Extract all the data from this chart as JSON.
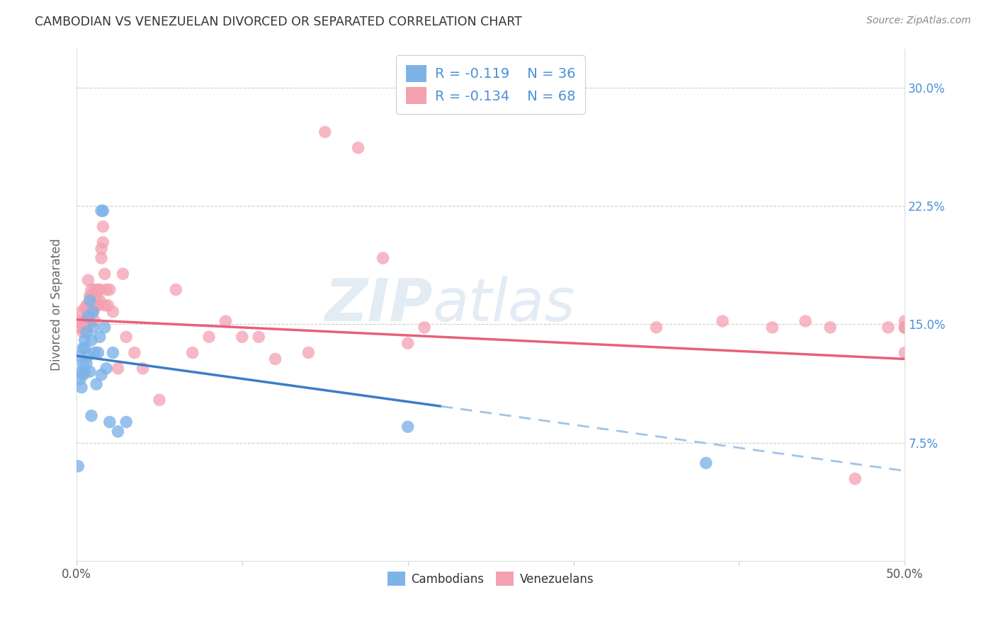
{
  "title": "CAMBODIAN VS VENEZUELAN DIVORCED OR SEPARATED CORRELATION CHART",
  "source": "Source: ZipAtlas.com",
  "ylabel": "Divorced or Separated",
  "xlabel": "",
  "xlim": [
    0.0,
    0.5
  ],
  "ylim": [
    0.0,
    0.325
  ],
  "xticks": [
    0.0,
    0.1,
    0.2,
    0.3,
    0.4,
    0.5
  ],
  "xticklabels": [
    "0.0%",
    "",
    "",
    "",
    "",
    "50.0%"
  ],
  "yticks_right": [
    0.075,
    0.15,
    0.225,
    0.3
  ],
  "yticklabels_right": [
    "7.5%",
    "15.0%",
    "22.5%",
    "30.0%"
  ],
  "cambodian_color": "#7EB3E8",
  "venezuelan_color": "#F4A0B0",
  "cambodian_line_color": "#3A7DC9",
  "venezuelan_line_color": "#E8607A",
  "dashed_line_color": "#A0C4E8",
  "legend_R_cambodian": "R = -0.119",
  "legend_N_cambodian": "N = 36",
  "legend_R_venezuelan": "R = -0.134",
  "legend_N_venezuelan": "N = 68",
  "watermark_zip": "ZIP",
  "watermark_atlas": "atlas",
  "cam_line_start_x": 0.0,
  "cam_line_start_y": 0.13,
  "cam_line_end_solid_x": 0.22,
  "cam_line_end_solid_y": 0.098,
  "cam_line_end_dash_x": 0.5,
  "cam_line_end_dash_y": 0.057,
  "ven_line_start_x": 0.0,
  "ven_line_start_y": 0.153,
  "ven_line_end_x": 0.5,
  "ven_line_end_y": 0.128,
  "cambodian_x": [
    0.001,
    0.002,
    0.002,
    0.003,
    0.003,
    0.004,
    0.004,
    0.004,
    0.005,
    0.005,
    0.005,
    0.006,
    0.006,
    0.007,
    0.007,
    0.008,
    0.008,
    0.009,
    0.009,
    0.01,
    0.01,
    0.011,
    0.012,
    0.013,
    0.014,
    0.015,
    0.015,
    0.016,
    0.017,
    0.018,
    0.02,
    0.022,
    0.025,
    0.03,
    0.2,
    0.38
  ],
  "cambodian_y": [
    0.06,
    0.13,
    0.115,
    0.12,
    0.11,
    0.135,
    0.125,
    0.118,
    0.14,
    0.135,
    0.12,
    0.145,
    0.125,
    0.155,
    0.13,
    0.165,
    0.12,
    0.14,
    0.092,
    0.158,
    0.148,
    0.132,
    0.112,
    0.132,
    0.142,
    0.118,
    0.222,
    0.222,
    0.148,
    0.122,
    0.088,
    0.132,
    0.082,
    0.088,
    0.085,
    0.062
  ],
  "venezuelan_x": [
    0.001,
    0.002,
    0.003,
    0.003,
    0.004,
    0.005,
    0.005,
    0.005,
    0.006,
    0.006,
    0.007,
    0.007,
    0.008,
    0.008,
    0.009,
    0.009,
    0.009,
    0.01,
    0.01,
    0.011,
    0.011,
    0.012,
    0.012,
    0.013,
    0.013,
    0.014,
    0.014,
    0.015,
    0.015,
    0.016,
    0.016,
    0.017,
    0.017,
    0.018,
    0.019,
    0.02,
    0.022,
    0.025,
    0.028,
    0.03,
    0.035,
    0.04,
    0.05,
    0.06,
    0.07,
    0.08,
    0.09,
    0.1,
    0.11,
    0.12,
    0.14,
    0.15,
    0.17,
    0.185,
    0.2,
    0.21,
    0.35,
    0.39,
    0.42,
    0.44,
    0.455,
    0.47,
    0.49,
    0.5,
    0.5,
    0.5,
    0.5,
    0.5
  ],
  "venezuelan_y": [
    0.148,
    0.152,
    0.148,
    0.158,
    0.145,
    0.152,
    0.16,
    0.148,
    0.148,
    0.162,
    0.178,
    0.158,
    0.168,
    0.152,
    0.168,
    0.172,
    0.158,
    0.158,
    0.162,
    0.152,
    0.172,
    0.168,
    0.162,
    0.162,
    0.172,
    0.172,
    0.165,
    0.198,
    0.192,
    0.202,
    0.212,
    0.182,
    0.162,
    0.172,
    0.162,
    0.172,
    0.158,
    0.122,
    0.182,
    0.142,
    0.132,
    0.122,
    0.102,
    0.172,
    0.132,
    0.142,
    0.152,
    0.142,
    0.142,
    0.128,
    0.132,
    0.272,
    0.262,
    0.192,
    0.138,
    0.148,
    0.148,
    0.152,
    0.148,
    0.152,
    0.148,
    0.052,
    0.148,
    0.148,
    0.152,
    0.148,
    0.148,
    0.132
  ]
}
